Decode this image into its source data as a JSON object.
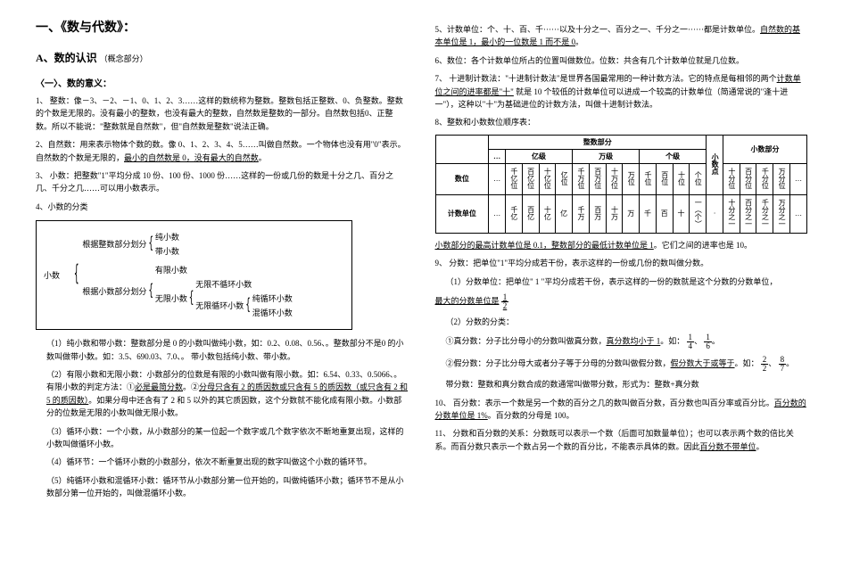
{
  "left": {
    "title": "一、《数与代数》：",
    "sectionA": "A、数的认识",
    "sectionA_sub": "（概念部分）",
    "sub1": "〈一〉、数的意义：",
    "p1": "1、 整数：像－3、－2、－1、0、1、2、3……这样的数统称为整数。整数包括正整数、0、负整数。整数的个数是无限的。没有最小的整数，也没有最大的整数，自然数是整数的一部分。自然数包括0、正整数。所以不能说：\"整数就是自然数\"，但\"自然数是整数\"说法正确。",
    "p2a": "2、自然数：用来表示物体个数的数。像 0、1、2、3、4、5……叫做自然数。一个物体也没有用\"0\"表示。自然数的个数是无限的，",
    "p2b": "最小的自然数是 0，没有最大的自然数",
    "p2c": "。",
    "p3": "3、 小数：把整数\"1\"平均分成 10 份、100 份、1000 份……这样的一份或几份的数是十分之几、百分之几、千分之几……可以用小数表示。",
    "p4": "4、小数的分类",
    "tree": {
      "root": "小数",
      "branch1_label": "根据整数部分划分",
      "branch1_items": [
        "纯小数",
        "带小数"
      ],
      "branch2_label": "根据小数部分划分",
      "branch2_items": [
        "有限小数",
        "无限小数"
      ],
      "nested_label_after": "无限小数",
      "nested_items": [
        "无限不循环小数",
        "无限循环小数"
      ],
      "nested2_items": [
        "纯循环小数",
        "混循环小数"
      ]
    },
    "p5": "（1）纯小数和带小数：整数部分是 0 的小数叫做纯小数，如：0.2、0.08、0.56、。整数部分不是0 的小数叫做带小数。如：3.5、690.03、7.0、。  带小数包括纯小数、带小数。",
    "p6a": "（2）有限小数和无限小数：小数部分的位数是有限的小数叫做有限小数。如：6.54、0.33、0.5066、。有限小数的判定方法：①",
    "p6b": "必是最简分数",
    "p6c": "。②",
    "p6d": "分母只含有 2 的质因数或只含有 5 的质因数（或只含有 2 和 5 的质因数）",
    "p6e": "。如果分母中还含有了 2 和 5 以外的其它质因数，这个分数就不能化成有限小数。小数部分的位数是无限的小数叫做无限小数。",
    "p7": "（3）循环小数：一个小数，从小数部分的某一位起一个数字或几个数字依次不断地重复出现，这样的小数叫做循环小数。",
    "p8": "（4）循环节：一个循环小数的小数部分，依次不断重复出现的数字叫做这个小数的循环节。",
    "p9": "（5）纯循环小数和混循环小数：循环节从小数部分第一位开始的，叫做纯循环小数；循环节不是从小数部分第一位开始的，叫做混循环小数。"
  },
  "right": {
    "p5a": "5、计数单位：个、十、百、千······以及十分之一、百分之一、千分之一······都是计数单位。",
    "p5b": "自然数的基本单位是 1，最小的一位数是 1 而不是 0",
    "p5c": "。",
    "p6": "6、数位：各个计数单位所占的位置叫做数位。位数：共含有几个计数单位就是几位数。",
    "p7a": "7、 十进制计数法：\"十进制计数法\"是世界各国最常用的一种计数方法。它的特点是每相邻的两个",
    "p7b": "计数单位之间的进率都是\"十\"",
    "p7c": " 就是 10 个较低的计数单位可以进成一个较高的计数单位（简通常说的\"逢十进一\"），这种以\"十\"为基础进位的计数方法，叫做十进制计数法。",
    "p8": "8、整数和小数数位顺序表：",
    "table": {
      "header_int": "整数部分",
      "header_dot": "小数点",
      "header_dec": "小数部分",
      "levels": [
        "…",
        "亿级",
        "万级",
        "个级"
      ],
      "row_digit_label": "数位",
      "row_unit_label": "计数单位",
      "int_digits": [
        "…",
        "千亿位",
        "百亿位",
        "十亿位",
        "亿位",
        "千万位",
        "百万位",
        "十万位",
        "万位",
        "千位",
        "百位",
        "十位",
        "个位"
      ],
      "dot": "·",
      "dec_digits": [
        "十分位",
        "百分位",
        "千分位",
        "万分位",
        "…"
      ],
      "int_units": [
        "…",
        "千亿",
        "百亿",
        "十亿",
        "亿",
        "千万",
        "百万",
        "十万",
        "万",
        "千",
        "百",
        "十",
        "一︵个︶"
      ],
      "dec_units": [
        "十分之一",
        "百分之一",
        "千分之一",
        "万分之一",
        "…"
      ]
    },
    "p8ba": "小数部分的最高计数单位是 0.1，整数部分的最低计数单位是 1",
    "p8bb": "。它们之间的进率也是 10。",
    "p9": "9、 分数：把单位\"1\"平均分成若干份，表示这样的一份或几份的数叫做分数。",
    "p9_1a": "（1）分数单位：把单位\" 1 \"平均分成若干份，表示这样的一份的数就是这个分数的分数单位，",
    "p9_1b": "最大的分数单位是",
    "frac_half_n": "1",
    "frac_half_d": "2",
    "p9_2": "（2）分数的分类：",
    "p9_2a_pre": "①真分数：分子比分母小的分数叫做真分数，",
    "p9_2a_u": "真分数均小于 1",
    "p9_2a_post": "。如：",
    "frac_14_n": "1",
    "frac_14_d": "4",
    "frac_16_n": "1",
    "frac_16_d": "6",
    "p9_2b_pre": "②假分数：分子比分母大或者分子等于分母的分数叫做假分数，",
    "p9_2b_u": "假分数大于或等于",
    "p9_2b_post": "。如：",
    "frac_22_n": "2",
    "frac_22_d": "2",
    "frac_87_n": "8",
    "frac_87_d": "7",
    "p9_2c": "带分数：整数和真分数合成的数通常叫做带分数，形式为：整数+真分数",
    "p10a": "10、 百分数：表示一个数是另一个数的百分之几的数叫做百分数，百分数也叫百分率或百分比。",
    "p10b": "百分数的分数单位是 1%",
    "p10c": "。百分数的分母是 100。",
    "p11a": "11、 分数和百分数的关系：分数既可以表示一个数（后面可加数量单位）；也可以表示两个数的倍比关系。而百分数只表示一个数占另一个数的百分比，不能表示具体的数。因此",
    "p11b": "百分数不带单位",
    "p11c": "。"
  }
}
